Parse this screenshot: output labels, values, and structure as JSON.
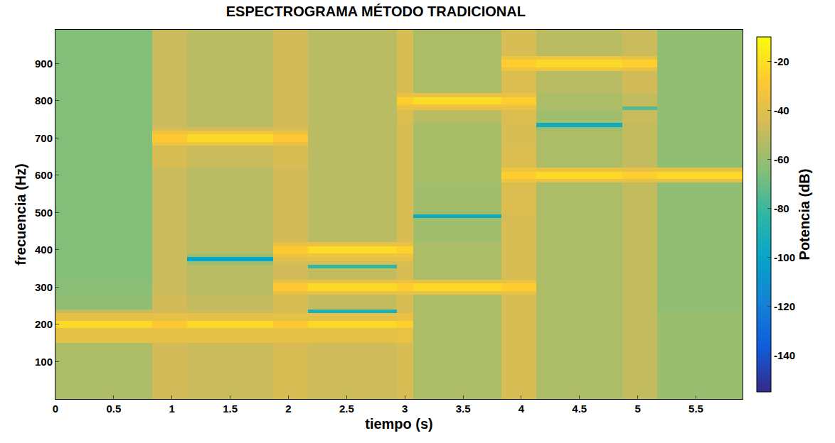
{
  "chart_data": {
    "type": "heatmap",
    "title": "ESPECTROGRAMA MÉTODO TRADICIONAL",
    "x_label": "tiempo (s)",
    "y_label": "frecuencia (Hz)",
    "colorbar_label": "Potencia (dB)",
    "x": [
      0,
      0.83,
      1.13,
      1.87,
      2.17,
      2.93,
      3.07,
      3.83,
      4.13,
      4.87,
      5.17,
      5.9
    ],
    "y": [
      0,
      150,
      190,
      210,
      230,
      240,
      280,
      290,
      310,
      320,
      350,
      360,
      370,
      380,
      390,
      410,
      420,
      485,
      495,
      580,
      590,
      610,
      620,
      680,
      690,
      710,
      720,
      730,
      740,
      775,
      785,
      790,
      810,
      820,
      880,
      890,
      910,
      920,
      990
    ],
    "z": [
      [
        -55,
        -46,
        -48,
        -44,
        -47,
        -44,
        -55,
        -44,
        -55,
        -50,
        -60
      ],
      [
        -38,
        -38,
        -38,
        -38,
        -38,
        -36,
        -55,
        -44,
        -55,
        -50,
        -60
      ],
      [
        -22,
        -28,
        -22,
        -28,
        -22,
        -26,
        -55,
        -44,
        -55,
        -50,
        -60
      ],
      [
        -38,
        -38,
        -38,
        -38,
        -38,
        -36,
        -55,
        -44,
        -55,
        -50,
        -60
      ],
      [
        -50,
        -46,
        -48,
        -44,
        -90,
        -44,
        -55,
        -44,
        -55,
        -50,
        -61
      ],
      [
        -62,
        -46,
        -50,
        -44,
        -50,
        -44,
        -55,
        -44,
        -55,
        -50,
        -62
      ],
      [
        -64,
        -48,
        -52,
        -36,
        -36,
        -36,
        -36,
        -36,
        -55,
        -50,
        -62
      ],
      [
        -64,
        -48,
        -52,
        -28,
        -22,
        -26,
        -22,
        -26,
        -55,
        -50,
        -62
      ],
      [
        -64,
        -48,
        -52,
        -36,
        -36,
        -36,
        -36,
        -36,
        -55,
        -50,
        -62
      ],
      [
        -65,
        -48,
        -52,
        -46,
        -50,
        -44,
        -55,
        -44,
        -55,
        -50,
        -62
      ],
      [
        -65,
        -48,
        -52,
        -46,
        -82,
        -44,
        -55,
        -44,
        -55,
        -50,
        -62
      ],
      [
        -65,
        -48,
        -60,
        -44,
        -45,
        -42,
        -55,
        -44,
        -55,
        -50,
        -62
      ],
      [
        -65,
        -48,
        -100,
        -40,
        -38,
        -38,
        -55,
        -44,
        -55,
        -50,
        -62
      ],
      [
        -65,
        -48,
        -60,
        -34,
        -34,
        -34,
        -55,
        -44,
        -55,
        -50,
        -62
      ],
      [
        -65,
        -48,
        -52,
        -28,
        -21,
        -25,
        -55,
        -44,
        -55,
        -50,
        -62
      ],
      [
        -65,
        -48,
        -52,
        -36,
        -36,
        -36,
        -55,
        -44,
        -55,
        -50,
        -62
      ],
      [
        -65,
        -48,
        -52,
        -46,
        -52,
        -44,
        -58,
        -44,
        -55,
        -50,
        -62
      ],
      [
        -65,
        -48,
        -52,
        -46,
        -52,
        -44,
        -95,
        -44,
        -55,
        -50,
        -62
      ],
      [
        -65,
        -48,
        -52,
        -46,
        -52,
        -44,
        -58,
        -42,
        -55,
        -50,
        -62
      ],
      [
        -65,
        -48,
        -52,
        -46,
        -52,
        -44,
        -56,
        -34,
        -36,
        -38,
        -38
      ],
      [
        -65,
        -48,
        -52,
        -46,
        -52,
        -44,
        -56,
        -26,
        -22,
        -26,
        -22
      ],
      [
        -65,
        -48,
        -52,
        -46,
        -52,
        -44,
        -56,
        -34,
        -36,
        -38,
        -38
      ],
      [
        -65,
        -44,
        -48,
        -44,
        -52,
        -44,
        -56,
        -42,
        -55,
        -50,
        -62
      ],
      [
        -65,
        -34,
        -34,
        -36,
        -52,
        -44,
        -56,
        -44,
        -55,
        -50,
        -62
      ],
      [
        -65,
        -28,
        -22,
        -28,
        -52,
        -44,
        -56,
        -44,
        -55,
        -50,
        -62
      ],
      [
        -65,
        -34,
        -34,
        -36,
        -52,
        -44,
        -56,
        -44,
        -55,
        -50,
        -62
      ],
      [
        -65,
        -44,
        -45,
        -44,
        -52,
        -44,
        -56,
        -44,
        -60,
        -50,
        -62
      ],
      [
        -65,
        -48,
        -52,
        -46,
        -52,
        -44,
        -56,
        -44,
        -95,
        -50,
        -62
      ],
      [
        -65,
        -48,
        -52,
        -46,
        -52,
        -42,
        -52,
        -42,
        -58,
        -48,
        -62
      ],
      [
        -65,
        -48,
        -52,
        -46,
        -52,
        -36,
        -36,
        -36,
        -55,
        -75,
        -62
      ],
      [
        -65,
        -48,
        -52,
        -46,
        -52,
        -34,
        -34,
        -34,
        -55,
        -50,
        -62
      ],
      [
        -65,
        -48,
        -52,
        -46,
        -52,
        -26,
        -21,
        -26,
        -55,
        -50,
        -62
      ],
      [
        -65,
        -48,
        -52,
        -46,
        -52,
        -36,
        -36,
        -36,
        -55,
        -50,
        -62
      ],
      [
        -65,
        -48,
        -52,
        -46,
        -52,
        -44,
        -55,
        -42,
        -52,
        -46,
        -62
      ],
      [
        -65,
        -48,
        -52,
        -46,
        -52,
        -44,
        -55,
        -34,
        -34,
        -36,
        -62
      ],
      [
        -65,
        -48,
        -52,
        -46,
        -52,
        -44,
        -55,
        -26,
        -22,
        -26,
        -62
      ],
      [
        -65,
        -48,
        -52,
        -46,
        -52,
        -44,
        -55,
        -34,
        -34,
        -36,
        -62
      ],
      [
        -65,
        -48,
        -52,
        -46,
        -52,
        -44,
        -55,
        -44,
        -52,
        -48,
        -62
      ]
    ],
    "xlim": [
      0,
      5.9
    ],
    "xticks": [
      0,
      0.5,
      1,
      1.5,
      2,
      2.5,
      3,
      3.5,
      4,
      4.5,
      5,
      5.5
    ],
    "ylim": [
      0,
      990
    ],
    "yticks": [
      100,
      200,
      300,
      400,
      500,
      600,
      700,
      800,
      900
    ],
    "zlim": [
      -155,
      -10
    ],
    "zticks": [
      -140,
      -120,
      -100,
      -80,
      -60,
      -40,
      -20
    ],
    "grid": false
  }
}
